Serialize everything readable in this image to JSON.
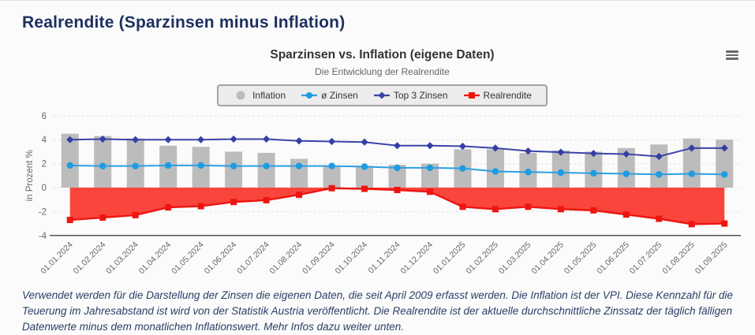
{
  "page": {
    "title": "Realrendite (Sparzinsen minus Inflation)",
    "description": "Verwendet werden für die Darstellung der Zinsen die eigenen Daten, die seit April 2009 erfasst werden. Die Inflation ist der VPI. Diese Kennzahl für die Teuerung im Jahresabstand ist wird von der Statistik Austria veröffentlicht. Die Realrendite ist der aktuelle durchschnittliche Zinssatz der täglich fälligen Datenwerte minus dem monatlichen Inflationswert. Mehr Infos dazu weiter unten."
  },
  "chart": {
    "title": "Sparzinsen vs. Inflation (eigene Daten)",
    "subtitle": "Die Entwicklung der Realrendite",
    "menu_icon": "hamburger-icon",
    "y_axis_title": "in Prozent %"
  },
  "colors": {
    "page_title": "#1d3160",
    "description": "#2c3e66",
    "axis_text": "#666666",
    "grid": "#e2e2e2",
    "axis_line": "#555555",
    "legend_bg": "#ececec",
    "legend_border": "#a2a2a2"
  },
  "chart_data": {
    "type": "mixed",
    "title": "Sparzinsen vs. Inflation (eigene Daten)",
    "subtitle": "Die Entwicklung der Realrendite",
    "ylabel": "in Prozent %",
    "ylim": [
      -4,
      6
    ],
    "yticks": [
      -4,
      -2,
      0,
      2,
      4,
      6
    ],
    "grid": true,
    "legend_position": "top-center",
    "categories": [
      "01.01.2024",
      "01.02.2024",
      "01.03.2024",
      "01.04.2024",
      "01.05.2024",
      "01.06.2024",
      "01.07.2024",
      "01.08.2024",
      "01.09.2024",
      "01.10.2024",
      "01.11.2024",
      "01.12.2024",
      "01.01.2025",
      "01.02.2025",
      "01.03.2025",
      "01.04.2025",
      "01.05.2025",
      "01.06.2025",
      "01.07.2025",
      "01.08.2025",
      "01.09.2025"
    ],
    "series": [
      {
        "name": "Inflation",
        "slug": "inflation",
        "type": "bar",
        "marker": "circle-legend",
        "color": "#bcbcbc",
        "values": [
          4.5,
          4.3,
          4.1,
          3.5,
          3.4,
          3.0,
          2.9,
          2.4,
          1.8,
          1.8,
          1.9,
          2.0,
          3.2,
          3.2,
          2.9,
          3.1,
          3.0,
          3.3,
          3.6,
          4.1,
          4.0
        ]
      },
      {
        "name": "ø Zinsen",
        "slug": "avg-zinsen",
        "type": "line",
        "marker": "circle",
        "color": "#2aa0e4",
        "marker_color": "#1e9ce2",
        "values": [
          1.85,
          1.8,
          1.8,
          1.85,
          1.85,
          1.8,
          1.8,
          1.8,
          1.8,
          1.75,
          1.65,
          1.65,
          1.6,
          1.35,
          1.3,
          1.25,
          1.2,
          1.15,
          1.1,
          1.15,
          1.1
        ]
      },
      {
        "name": "Top 3 Zinsen",
        "slug": "top3-zinsen",
        "type": "line",
        "marker": "diamond",
        "color": "#3b44a8",
        "marker_color": "#353fa4",
        "values": [
          4.0,
          4.05,
          4.0,
          4.0,
          4.0,
          4.05,
          4.05,
          3.9,
          3.85,
          3.8,
          3.5,
          3.5,
          3.45,
          3.3,
          3.05,
          2.95,
          2.85,
          2.8,
          2.6,
          3.3,
          3.3
        ]
      },
      {
        "name": "Realrendite",
        "slug": "realrendite",
        "type": "area",
        "marker": "square",
        "color": "#ee1511",
        "fill": "#fa453c",
        "values": [
          -2.7,
          -2.5,
          -2.3,
          -1.65,
          -1.55,
          -1.2,
          -1.05,
          -0.6,
          -0.05,
          -0.1,
          -0.2,
          -0.35,
          -1.6,
          -1.8,
          -1.6,
          -1.8,
          -1.9,
          -2.25,
          -2.6,
          -3.05,
          -3.0
        ]
      }
    ]
  }
}
